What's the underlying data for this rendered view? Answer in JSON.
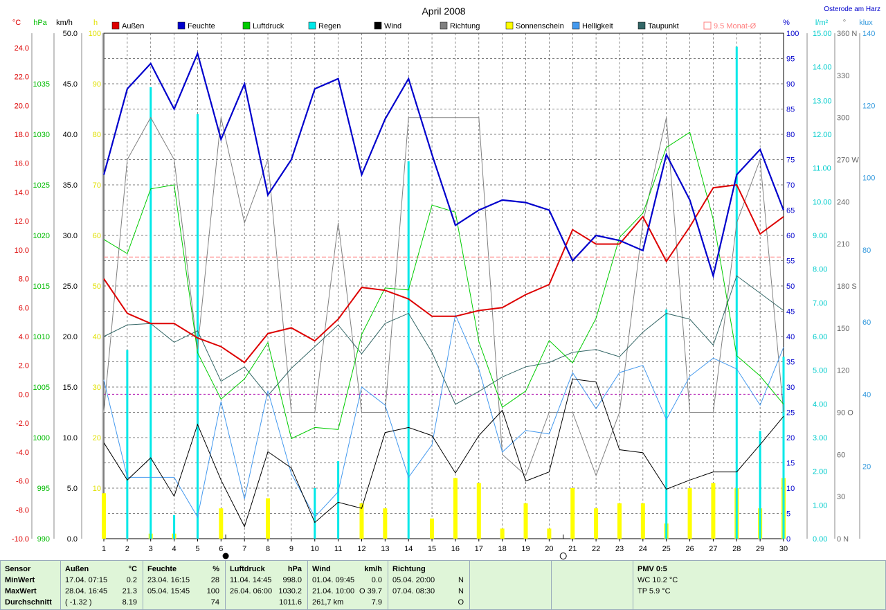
{
  "chart_data": {
    "type": "line",
    "title": "April 2008",
    "location": "Osterode am Harz",
    "x": [
      1,
      2,
      3,
      4,
      5,
      6,
      7,
      8,
      9,
      10,
      11,
      12,
      13,
      14,
      15,
      16,
      17,
      18,
      19,
      20,
      21,
      22,
      23,
      24,
      25,
      26,
      27,
      28,
      29,
      30
    ],
    "reference_line_label": "9.5 Monat-Ø",
    "legend": [
      "Außen",
      "Feuchte",
      "Luftdruck",
      "Regen",
      "Wind",
      "Richtung",
      "Sonnenschein",
      "Helligkeit",
      "Taupunkt",
      "9.5 Monat-Ø"
    ],
    "colors": {
      "aussen": "#dd0000",
      "feuchte": "#0000cc",
      "luftdruck": "#00cc00",
      "regen": "#00e8e8",
      "wind": "#000000",
      "richtung": "#808080",
      "sonne": "#ffff00",
      "helligkeit": "#4499ee",
      "taupunkt": "#336666",
      "monat": "#ff8080"
    },
    "axes": {
      "temp": {
        "unit": "°C",
        "range": [
          -10,
          25
        ],
        "ticks": [
          "24.0",
          "22.0",
          "20.0",
          "18.0",
          "16.0",
          "14.0",
          "12.0",
          "10.0",
          "8.0",
          "6.0",
          "4.0",
          "2.0",
          "0.0",
          "-2.0",
          "-4.0",
          "-6.0",
          "-8.0",
          "-10.0"
        ]
      },
      "pressure": {
        "unit": "hPa",
        "range": [
          990,
          1040
        ],
        "ticks": [
          "1035",
          "1030",
          "1025",
          "1020",
          "1015",
          "1010",
          "1005",
          "1000",
          "995",
          "990"
        ]
      },
      "wind": {
        "unit": "km/h",
        "range": [
          0,
          50
        ],
        "ticks": [
          "50.0",
          "45.0",
          "40.0",
          "35.0",
          "30.0",
          "25.0",
          "20.0",
          "15.0",
          "10.0",
          "5.0",
          "0.0"
        ]
      },
      "sun": {
        "unit": "h",
        "range": [
          0,
          100
        ],
        "ticks": [
          "100",
          "90",
          "80",
          "70",
          "60",
          "50",
          "40",
          "30",
          "20",
          "10"
        ]
      },
      "humidity": {
        "unit": "%",
        "range": [
          0,
          100
        ],
        "ticks": [
          "100",
          "95",
          "90",
          "85",
          "80",
          "75",
          "70",
          "65",
          "60",
          "55",
          "50",
          "45",
          "40",
          "35",
          "30",
          "25",
          "20",
          "15",
          "10",
          "5",
          "0"
        ]
      },
      "rain": {
        "unit": "l/m²",
        "range": [
          0,
          15
        ],
        "ticks": [
          "15.00",
          "14.00",
          "13.00",
          "12.00",
          "11.00",
          "10.00",
          "9.00",
          "8.00",
          "7.00",
          "6.00",
          "5.00",
          "4.00",
          "3.00",
          "2.00",
          "1.00",
          "0.00"
        ]
      },
      "direction": {
        "unit": "°",
        "range": [
          0,
          360
        ],
        "ticks": [
          "360 N",
          "330",
          "300",
          "270 W",
          "240",
          "210",
          "180 S",
          "150",
          "120",
          "90  O",
          "60",
          "30",
          "0  N"
        ]
      },
      "light": {
        "unit": "klux",
        "range": [
          0,
          140
        ],
        "ticks": [
          "140",
          "120",
          "100",
          "80",
          "60",
          "40",
          "20"
        ]
      }
    },
    "series": [
      {
        "name": "Außen",
        "axis": "temp",
        "values": [
          8.0,
          5.6,
          4.9,
          4.9,
          3.9,
          3.3,
          2.2,
          4.2,
          4.6,
          3.7,
          5.2,
          7.4,
          7.2,
          6.6,
          5.4,
          5.4,
          5.8,
          6.0,
          6.9,
          7.6,
          11.4,
          10.4,
          10.4,
          12.3,
          9.2,
          11.6,
          14.3,
          14.5,
          11.1,
          12.3
        ]
      },
      {
        "name": "Feuchte",
        "axis": "humidity",
        "values": [
          72,
          89,
          94,
          85,
          96,
          79,
          90,
          68,
          75,
          89,
          91,
          72,
          83,
          91,
          76,
          62,
          65,
          67,
          66.5,
          65,
          55,
          60,
          59,
          57,
          76,
          67,
          52,
          72,
          77,
          65
        ]
      },
      {
        "name": "Luftdruck",
        "axis": "pressure",
        "values": [
          1019.6,
          1018.2,
          1024.6,
          1025.0,
          1008.4,
          1003.8,
          1005.8,
          1009.4,
          999.9,
          1001.0,
          1000.8,
          1010.2,
          1014.8,
          1014.6,
          1023.0,
          1022.3,
          1009.5,
          1003.0,
          1004.6,
          1009.6,
          1007.4,
          1011.8,
          1019.8,
          1022.2,
          1028.7,
          1030.2,
          1021.6,
          1008.1,
          1006.1,
          1003.3
        ]
      },
      {
        "name": "Wind",
        "axis": "wind",
        "values": [
          9.5,
          5.8,
          8.0,
          4.2,
          11.3,
          5.8,
          1.2,
          8.6,
          7.0,
          1.6,
          3.6,
          3.0,
          10.5,
          11.0,
          10.2,
          6.5,
          10.2,
          12.7,
          5.7,
          6.6,
          15.8,
          15.5,
          8.8,
          8.5,
          4.9,
          5.8,
          6.6,
          6.6,
          9.3,
          12.1
        ]
      },
      {
        "name": "Richtung",
        "axis": "direction",
        "values": [
          90,
          270,
          300,
          270,
          135,
          300,
          225,
          270,
          90,
          90,
          225,
          90,
          90,
          300,
          300,
          300,
          300,
          60,
          45,
          90,
          90,
          45,
          90,
          225,
          300,
          90,
          90,
          225,
          270,
          90
        ]
      },
      {
        "name": "Helligkeit",
        "axis": "light",
        "values": [
          44,
          17,
          17,
          17,
          6,
          38,
          11,
          41,
          18,
          6,
          13,
          42,
          37,
          17,
          26,
          62,
          47,
          24,
          30,
          29,
          46,
          36,
          46,
          48,
          33,
          45,
          50,
          47,
          37,
          53
        ]
      },
      {
        "name": "Taupunkt",
        "axis": "temp",
        "values": [
          4.0,
          4.8,
          4.9,
          3.6,
          4.4,
          0.9,
          1.9,
          -0.1,
          1.8,
          3.3,
          4.8,
          2.8,
          4.9,
          5.6,
          2.9,
          -0.7,
          0.2,
          1.2,
          1.9,
          2.2,
          2.9,
          3.1,
          2.6,
          4.3,
          5.6,
          5.2,
          3.4,
          8.2,
          7.0,
          5.8
        ]
      },
      {
        "name": "Regen",
        "axis": "rain",
        "type": "bar",
        "values": [
          0,
          5.6,
          13.4,
          0.7,
          12.6,
          0,
          0,
          0,
          0,
          1.5,
          2.3,
          0,
          0,
          11.2,
          0,
          0,
          0,
          0,
          0,
          0,
          0,
          0,
          0,
          0,
          6.8,
          0,
          0,
          14.6,
          3.2,
          5.4
        ]
      },
      {
        "name": "Sonnenschein",
        "axis": "sun",
        "type": "bar",
        "values": [
          9,
          0,
          1,
          1,
          0,
          6,
          0,
          8,
          0,
          0,
          0,
          7,
          6,
          0,
          4,
          12,
          11,
          2,
          7,
          2,
          10,
          6,
          7,
          7,
          3,
          10,
          11,
          10,
          6,
          12
        ]
      }
    ],
    "monthly_mean": 9.5,
    "moon_phases": {
      "new_moon_day": 6.2,
      "full_moon_day": 20.6
    }
  },
  "stats": {
    "headers": {
      "sensor": "Sensor",
      "aussen": "Außen",
      "aussen_unit": "°C",
      "feuchte": "Feuchte",
      "feuchte_unit": "%",
      "luftdruck": "Luftdruck",
      "luftdruck_unit": "hPa",
      "wind": "Wind",
      "wind_unit": "km/h",
      "richtung": "Richtung",
      "pmv": "PMV 0:5"
    },
    "row_labels": [
      "MinWert",
      "MaxWert",
      "Durchschnitt"
    ],
    "aussen": [
      [
        "17.04.  07:15",
        "0.2"
      ],
      [
        "28.04.  16:45",
        "21.3"
      ],
      [
        "( -1.32 )",
        "8.19"
      ]
    ],
    "feuchte": [
      [
        "23.04.  16:15",
        "28"
      ],
      [
        "05.04.  15:45",
        "100"
      ],
      [
        "",
        "74"
      ]
    ],
    "luftdruck": [
      [
        "11.04.  14:45",
        "998.0"
      ],
      [
        "26.04.  06:00",
        "1030.2"
      ],
      [
        "",
        "1011.6"
      ]
    ],
    "wind": [
      [
        "01.04.  09:45",
        "0.0"
      ],
      [
        "21.04.  10:00",
        "O 39.7"
      ],
      [
        "261,7 km",
        "7.9"
      ]
    ],
    "richtung": [
      [
        "05.04.  20:00",
        "N"
      ],
      [
        "07.04.  08:30",
        "N"
      ],
      [
        "",
        "O"
      ]
    ],
    "pmv_lines": [
      "WC 10.2 °C",
      "TP 5.9 °C"
    ]
  }
}
